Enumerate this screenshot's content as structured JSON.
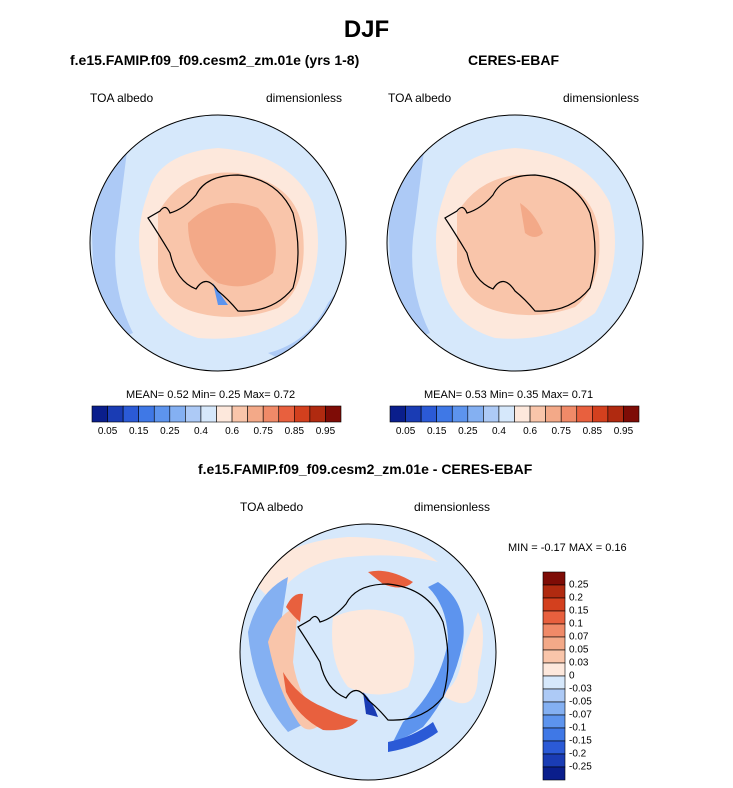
{
  "figure": {
    "title": "DJF",
    "colors": {
      "land_outline": "#000000",
      "ocean_base": "#d6e8fb",
      "ice_mid": "#f9c5aa",
      "interior": "#f3a988"
    }
  },
  "panels": [
    {
      "title": "f.e15.FAMIP.f09_f09.cesm2_zm.01e (yrs 1-8)",
      "left_label": "TOA albedo",
      "right_label": "dimensionless",
      "stats": {
        "mean_label": "MEAN=",
        "mean": "0.52",
        "min_label": "Min=",
        "min": "0.25",
        "max_label": "Max=",
        "max": "0.72"
      }
    },
    {
      "title": "CERES-EBAF",
      "left_label": "TOA albedo",
      "right_label": "dimensionless",
      "stats": {
        "mean_label": "MEAN=",
        "mean": "0.53",
        "min_label": "Min=",
        "min": "0.35",
        "max_label": "Max=",
        "max": "0.71"
      }
    },
    {
      "title": "f.e15.FAMIP.f09_f09.cesm2_zm.01e - CERES-EBAF",
      "left_label": "TOA albedo",
      "right_label": "dimensionless",
      "minmax": "MIN =  -0.17 MAX =   0.16"
    }
  ],
  "chart_data": [
    {
      "type": "heatmap",
      "title": "f.e15.FAMIP.f09_f09.cesm2_zm.01e (yrs 1-8)",
      "variable": "TOA albedo",
      "units": "dimensionless",
      "projection": "south polar stereographic",
      "season": "DJF",
      "mean": 0.52,
      "min": 0.25,
      "max": 0.72,
      "colorbar": {
        "orientation": "horizontal",
        "tick_labels": [
          "0.05",
          "0.15",
          "0.25",
          "0.4",
          "0.6",
          "0.75",
          "0.85",
          "0.95"
        ],
        "colors": [
          "#0a1e8c",
          "#1a3cb4",
          "#2b5ad6",
          "#3f78e6",
          "#5d94ee",
          "#84b0f2",
          "#adcaf6",
          "#d6e8fb",
          "#fde8dc",
          "#f9c5aa",
          "#f3a988",
          "#f08a68",
          "#e8603e",
          "#d3401e",
          "#b02a10",
          "#7e0c06"
        ]
      },
      "region_values": {
        "antarctic_interior": 0.72,
        "antarctic_coast": 0.6,
        "sea_ice_zone": 0.6,
        "southern_ocean": 0.45
      }
    },
    {
      "type": "heatmap",
      "title": "CERES-EBAF",
      "variable": "TOA albedo",
      "units": "dimensionless",
      "projection": "south polar stereographic",
      "season": "DJF",
      "mean": 0.53,
      "min": 0.35,
      "max": 0.71,
      "colorbar": {
        "orientation": "horizontal",
        "tick_labels": [
          "0.05",
          "0.15",
          "0.25",
          "0.4",
          "0.6",
          "0.75",
          "0.85",
          "0.95"
        ],
        "colors": [
          "#0a1e8c",
          "#1a3cb4",
          "#2b5ad6",
          "#3f78e6",
          "#5d94ee",
          "#84b0f2",
          "#adcaf6",
          "#d6e8fb",
          "#fde8dc",
          "#f9c5aa",
          "#f3a988",
          "#f08a68",
          "#e8603e",
          "#d3401e",
          "#b02a10",
          "#7e0c06"
        ]
      },
      "region_values": {
        "antarctic_interior": 0.7,
        "antarctic_coast": 0.65,
        "sea_ice_zone": 0.6,
        "southern_ocean": 0.45
      }
    },
    {
      "type": "heatmap",
      "title": "f.e15.FAMIP.f09_f09.cesm2_zm.01e - CERES-EBAF",
      "variable": "TOA albedo",
      "units": "dimensionless",
      "projection": "south polar stereographic",
      "season": "DJF",
      "min": -0.17,
      "max": 0.16,
      "colorbar": {
        "orientation": "vertical",
        "tick_labels": [
          "0.25",
          "0.2",
          "0.15",
          "0.1",
          "0.07",
          "0.05",
          "0.03",
          "0",
          "-0.03",
          "-0.05",
          "-0.07",
          "-0.1",
          "-0.15",
          "-0.2",
          "-0.25"
        ],
        "colors": [
          "#7e0c06",
          "#b02a10",
          "#d3401e",
          "#e8603e",
          "#f08a68",
          "#f3a988",
          "#f9c5aa",
          "#fde8dc",
          "#d6e8fb",
          "#adcaf6",
          "#84b0f2",
          "#5d94ee",
          "#3f78e6",
          "#2b5ad6",
          "#1a3cb4",
          "#0a1e8c"
        ]
      },
      "region_values": {
        "antarctic_interior": 0.0,
        "antarctic_peninsula_ross_sea": 0.1,
        "sea_ice_edge_ring": -0.07,
        "southern_ocean": 0.0
      }
    }
  ]
}
